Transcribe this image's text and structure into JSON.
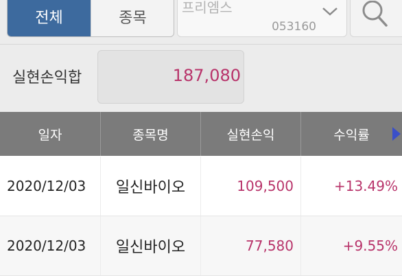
{
  "filter": {
    "all_label": "전체",
    "stock_label": "종목"
  },
  "stock_select": {
    "name": "프리엠스",
    "code": "053160"
  },
  "summary": {
    "label": "실현손익합",
    "value": "187,080"
  },
  "table": {
    "headers": [
      "일자",
      "종목명",
      "실현손익",
      "수익률"
    ],
    "rows": [
      {
        "date": "2020/12/03",
        "name": "일신바이오",
        "profit": "109,500",
        "rate": "+13.49%"
      },
      {
        "date": "2020/12/03",
        "name": "일신바이오",
        "profit": "77,580",
        "rate": "+9.55%"
      }
    ]
  },
  "colors": {
    "accent": "#3d6a9e",
    "profit": "#b8336a",
    "header_bg": "#7b7b7b",
    "scroll_arrow": "#3a4fc8"
  }
}
